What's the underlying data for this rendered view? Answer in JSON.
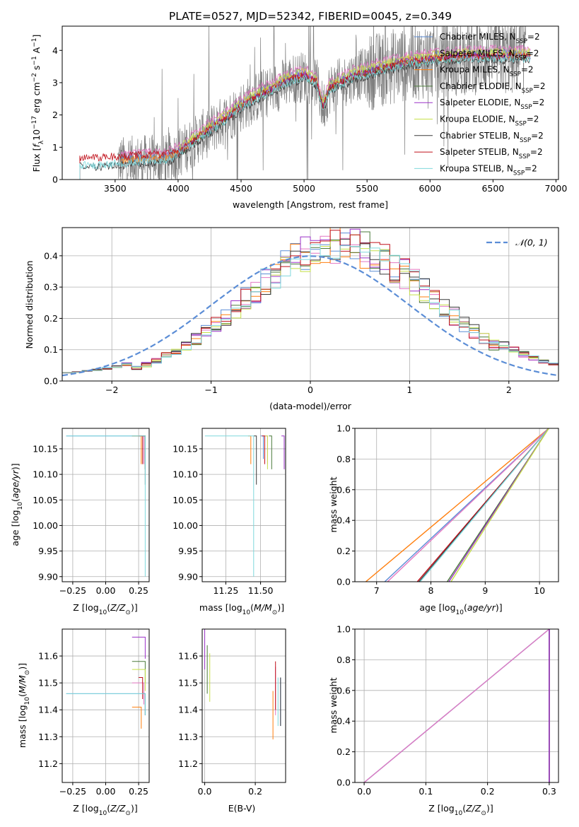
{
  "figure_title": "PLATE=0527, MJD=52342, FIBERID=0045, z=0.349",
  "colors": {
    "Chabrier MILES": "#5b8dd6",
    "Salpeter MILES": "#e377c2",
    "Kroupa MILES": "#ff7f0e",
    "Chabrier ELODIE": "#4a7a3a",
    "Salpeter ELODIE": "#9b30c8",
    "Kroupa ELODIE": "#c6e04a",
    "Chabrier STELIB": "#3a3a3a",
    "Salpeter STELIB": "#c0101a",
    "Kroupa STELIB": "#7fd8dc",
    "data": "#7f7f7f",
    "normal": "#5b8dd6"
  },
  "chart_data": [
    {
      "id": "spectrum",
      "type": "line",
      "title": "PLATE=0527, MJD=52342, FIBERID=0045, z=0.349",
      "xlabel": "wavelength [Angstrom, rest frame]",
      "ylabel": "Flux [f_λ 10^-17 erg cm^-2 s^-1 A^-1]",
      "xlim": [
        3080,
        7020
      ],
      "ylim": [
        0,
        4.75
      ],
      "xticks": [
        3500,
        4000,
        4500,
        5000,
        5500,
        6000,
        6500,
        7000
      ],
      "yticks": [
        0,
        1,
        2,
        3,
        4
      ],
      "grid": false,
      "legend_position": "top-right",
      "legend": [
        {
          "model": "Chabrier MILES",
          "label": "Chabrier MILES, N",
          "sub": "SSP",
          "suffix": "=2"
        },
        {
          "model": "Salpeter MILES",
          "label": "Salpeter MILES, N",
          "sub": "SSP",
          "suffix": "=2"
        },
        {
          "model": "Kroupa MILES",
          "label": "Kroupa MILES, N",
          "sub": "SSP",
          "suffix": "=2"
        },
        {
          "model": "Chabrier ELODIE",
          "label": "Chabrier ELODIE, N",
          "sub": "SSP",
          "suffix": "=2"
        },
        {
          "model": "Salpeter ELODIE",
          "label": "Salpeter ELODIE, N",
          "sub": "SSP",
          "suffix": "=2"
        },
        {
          "model": "Kroupa ELODIE",
          "label": "Kroupa ELODIE, N",
          "sub": "SSP",
          "suffix": "=2"
        },
        {
          "model": "Chabrier STELIB",
          "label": "Chabrier STELIB, N",
          "sub": "SSP",
          "suffix": "=2"
        },
        {
          "model": "Salpeter STELIB",
          "label": "Salpeter STELIB, N",
          "sub": "SSP",
          "suffix": "=2"
        },
        {
          "model": "Kroupa STELIB",
          "label": "Kroupa STELIB, N",
          "sub": "SSP",
          "suffix": "=2"
        }
      ],
      "continuum": {
        "x": [
          3220,
          3300,
          3400,
          3500,
          3600,
          3700,
          3800,
          3900,
          4000,
          4100,
          4200,
          4300,
          4400,
          4500,
          4600,
          4700,
          4800,
          4900,
          5000,
          5100,
          5150,
          5200,
          5300,
          5400,
          5500,
          5600,
          5700,
          5800,
          5900,
          6000,
          6100,
          6200,
          6300,
          6400,
          6500,
          6600,
          6700,
          6800
        ],
        "y": [
          0.5,
          0.5,
          0.5,
          0.55,
          0.55,
          0.6,
          0.6,
          0.6,
          0.8,
          1.1,
          1.4,
          1.65,
          1.95,
          2.25,
          2.5,
          2.7,
          2.9,
          3.1,
          3.2,
          3.0,
          2.2,
          2.8,
          3.0,
          3.2,
          3.3,
          3.4,
          3.5,
          3.6,
          3.65,
          3.7,
          3.75,
          3.75,
          3.8,
          3.8,
          3.8,
          3.8,
          3.8,
          3.8
        ]
      },
      "data_range": [
        3520,
        6760
      ]
    },
    {
      "id": "residuals",
      "type": "line",
      "xlabel": "(data-model)/error",
      "ylabel": "Normed distribution",
      "xlim": [
        -2.5,
        2.5
      ],
      "ylim": [
        0,
        0.49
      ],
      "xticks": [
        -2,
        -1,
        0,
        1,
        2
      ],
      "yticks": [
        0.0,
        0.1,
        0.2,
        0.3,
        0.4
      ],
      "grid": true,
      "legend_position": "top-right",
      "legend": [
        {
          "label": "𝒩(0, 1)"
        }
      ],
      "bins": [
        -2.5,
        2.5,
        50
      ],
      "base_distribution": {
        "mean": 0.3,
        "sd": 0.95
      }
    },
    {
      "id": "age_vs_Z",
      "type": "line",
      "xlabel": "Z [log₁₀(Z/Z☉)]",
      "ylabel": "age  [log₁₀(age/yr)]",
      "xlim": [
        -0.33,
        0.33
      ],
      "ylim": [
        9.89,
        10.19
      ],
      "xticks": [
        -0.25,
        0.0,
        0.25
      ],
      "yticks": [
        9.9,
        9.95,
        10.0,
        10.05,
        10.1,
        10.15
      ],
      "grid": true
    },
    {
      "id": "age_vs_mass",
      "type": "line",
      "xlabel": "mass [log₁₀(M/M☉)]",
      "xlim": [
        11.08,
        11.68
      ],
      "ylim": [
        9.89,
        10.19
      ],
      "xticks": [
        11.25,
        11.5
      ],
      "yticks": [
        9.9,
        9.95,
        10.0,
        10.05,
        10.1,
        10.15
      ],
      "grid": true
    },
    {
      "id": "massweight_vs_age",
      "type": "line",
      "xlabel": "age  [log₁₀(age/yr)]",
      "ylabel": "mass weight",
      "xlim": [
        6.6,
        10.35
      ],
      "ylim": [
        0,
        1
      ],
      "xticks": [
        7,
        8,
        9,
        10
      ],
      "yticks": [
        0.0,
        0.2,
        0.4,
        0.6,
        0.8,
        1.0
      ],
      "grid": true,
      "series": [
        {
          "model": "Kroupa MILES",
          "x": [
            6.8,
            10.17
          ],
          "y": [
            0,
            1
          ]
        },
        {
          "model": "Chabrier MILES",
          "x": [
            7.15,
            10.17
          ],
          "y": [
            0,
            1
          ]
        },
        {
          "model": "Salpeter MILES",
          "x": [
            7.2,
            10.17
          ],
          "y": [
            0,
            1
          ]
        },
        {
          "model": "Salpeter STELIB",
          "x": [
            7.75,
            10.17
          ],
          "y": [
            0,
            1
          ]
        },
        {
          "model": "Chabrier STELIB",
          "x": [
            7.78,
            10.17
          ],
          "y": [
            0,
            1
          ]
        },
        {
          "model": "Kroupa STELIB",
          "x": [
            7.8,
            10.17
          ],
          "y": [
            0,
            1
          ]
        },
        {
          "model": "Chabrier ELODIE",
          "x": [
            8.3,
            10.17
          ],
          "y": [
            0,
            1
          ]
        },
        {
          "model": "Salpeter ELODIE",
          "x": [
            8.33,
            10.17
          ],
          "y": [
            0,
            1
          ]
        },
        {
          "model": "Kroupa ELODIE",
          "x": [
            8.37,
            10.17
          ],
          "y": [
            0,
            1
          ]
        }
      ]
    },
    {
      "id": "mass_vs_Z",
      "type": "line",
      "xlabel": "Z [log₁₀(Z/Z☉)]",
      "ylabel": "mass [log₁₀(M/M☉)]",
      "xlim": [
        -0.33,
        0.33
      ],
      "ylim": [
        11.13,
        11.7
      ],
      "xticks": [
        -0.25,
        0.0,
        0.25
      ],
      "yticks": [
        11.2,
        11.3,
        11.4,
        11.5,
        11.6
      ],
      "grid": true
    },
    {
      "id": "mass_vs_ebv",
      "type": "line",
      "xlabel": "E(B-V)",
      "xlim": [
        -0.01,
        0.32
      ],
      "ylim": [
        11.13,
        11.7
      ],
      "xticks": [
        0.0,
        0.2
      ],
      "yticks": [
        11.2,
        11.3,
        11.4,
        11.5,
        11.6
      ],
      "grid": true
    },
    {
      "id": "massweight_vs_Z",
      "type": "line",
      "xlabel": "Z [log₁₀(Z/Z☉)]",
      "ylabel": "mass weight",
      "xlim": [
        -0.015,
        0.315
      ],
      "ylim": [
        0,
        1
      ],
      "xticks": [
        0.0,
        0.1,
        0.2,
        0.3
      ],
      "yticks": [
        0.0,
        0.2,
        0.4,
        0.6,
        0.8,
        1.0
      ],
      "grid": true
    }
  ],
  "components": [
    {
      "model": "Chabrier MILES",
      "mass": 11.52,
      "mass_tot": 11.46,
      "Z": 0.3,
      "Zmin": -0.3,
      "ebv": 0.3,
      "age_old": 10.175,
      "age_young": 10.13,
      "mw_z0": -0.3
    },
    {
      "model": "Salpeter MILES",
      "mass": 11.55,
      "mass_tot": 11.5,
      "Z": 0.29,
      "Zmin": 0.2,
      "ebv": 0.28,
      "age_old": 10.175,
      "age_young": 10.12
    },
    {
      "model": "Kroupa MILES",
      "mass": 11.43,
      "mass_tot": 11.41,
      "Z": 0.27,
      "Zmin": 0.2,
      "ebv": 0.27,
      "age_old": 10.175,
      "age_young": 10.12
    },
    {
      "model": "Chabrier ELODIE",
      "mass": 11.58,
      "mass_tot": 11.58,
      "Z": 0.3,
      "Zmin": 0.2,
      "ebv": 0.01,
      "age_old": 10.175,
      "age_young": 10.11
    },
    {
      "model": "Salpeter ELODIE",
      "mass": 11.67,
      "mass_tot": 11.67,
      "Z": 0.3,
      "Zmin": 0.2,
      "ebv": 0.0,
      "age_old": 10.175,
      "age_young": 10.11
    },
    {
      "model": "Kroupa ELODIE",
      "mass": 11.55,
      "mass_tot": 11.55,
      "Z": 0.3,
      "Zmin": 0.2,
      "ebv": 0.02,
      "age_old": 10.175,
      "age_young": 10.11
    },
    {
      "model": "Chabrier STELIB",
      "mass": 11.47,
      "mass_tot": 11.46,
      "Z": 0.3,
      "Zmin": 0.28,
      "ebv": 0.3,
      "age_old": 10.175,
      "age_young": 10.08
    },
    {
      "model": "Salpeter STELIB",
      "mass": 11.53,
      "mass_tot": 11.52,
      "Z": 0.28,
      "Zmin": 0.25,
      "ebv": 0.28,
      "age_old": 10.175,
      "age_young": 10.12
    },
    {
      "model": "Kroupa STELIB",
      "mass": 11.45,
      "mass_tot": 11.46,
      "Z": 0.3,
      "Zmin": -0.3,
      "ebv": 0.29,
      "age_old": 10.175,
      "age_young": 9.9
    }
  ]
}
